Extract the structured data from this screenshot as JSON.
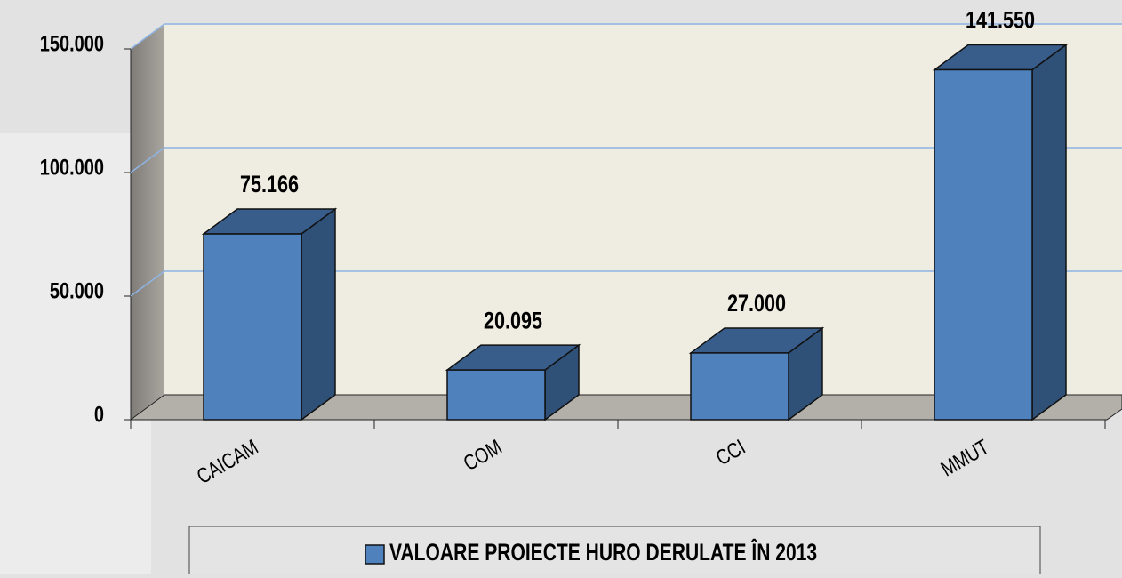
{
  "chart_data": {
    "type": "bar3d",
    "categories": [
      "CAICAM",
      "COM",
      "CCI",
      "MMUT"
    ],
    "series": [
      {
        "name": "VALOARE PROIECTE HURO DERULATE ÎN 2013",
        "color": "#4f81bd",
        "values": [
          75166,
          20095,
          27000,
          141550
        ],
        "value_labels": [
          "75.166",
          "20.095",
          "27.000",
          "141.550"
        ]
      }
    ],
    "ylim": [
      0,
      150000
    ],
    "yticks": [
      0,
      {
        "value": 50000,
        "label": "50.000"
      },
      {
        "value": 100000,
        "label": "100.000"
      },
      {
        "value": 150000,
        "label": "150.000"
      }
    ],
    "grid": true,
    "legend": "bottom"
  }
}
